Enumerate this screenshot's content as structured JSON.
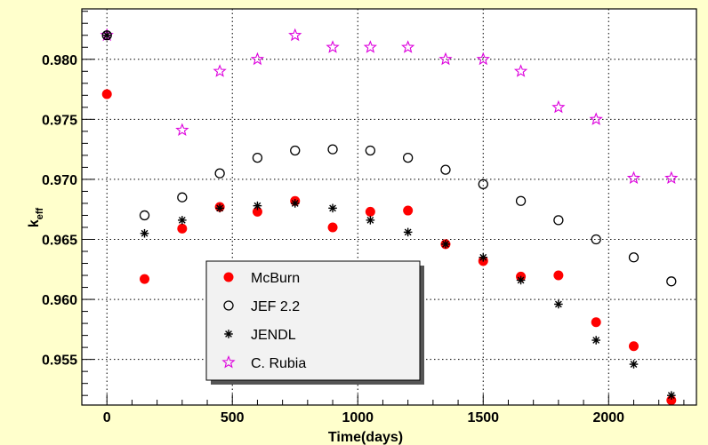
{
  "chart_data": {
    "type": "scatter",
    "title": "",
    "xlabel": "Time(days)",
    "ylabel": "k",
    "ylabel_sub": "eff",
    "xlim": [
      -100,
      2350
    ],
    "ylim": [
      0.9512,
      0.9842
    ],
    "xticks": [
      0,
      500,
      1000,
      1500,
      2000
    ],
    "xtick_labels": [
      "0",
      "500",
      "1000",
      "1500",
      "2000"
    ],
    "yticks": [
      0.955,
      0.96,
      0.965,
      0.97,
      0.975,
      0.98
    ],
    "ytick_labels": [
      "0.955",
      "0.960",
      "0.965",
      "0.970",
      "0.975",
      "0.980"
    ],
    "grid": true,
    "legend_position": "lower-left",
    "series": [
      {
        "name": "McBurn",
        "marker": "filled-circle",
        "color": "#ff0000",
        "x": [
          0,
          150,
          300,
          450,
          600,
          750,
          900,
          1050,
          1200,
          1350,
          1500,
          1650,
          1800,
          1950,
          2100,
          2250
        ],
        "y": [
          0.9771,
          0.9617,
          0.9659,
          0.9677,
          0.9673,
          0.9682,
          0.966,
          0.9673,
          0.9674,
          0.9646,
          0.9632,
          0.9619,
          0.962,
          0.9581,
          0.9561,
          0.9516
        ]
      },
      {
        "name": "JEF 2.2",
        "marker": "open-circle",
        "color": "#000000",
        "x": [
          0,
          150,
          300,
          450,
          600,
          750,
          900,
          1050,
          1200,
          1350,
          1500,
          1650,
          1800,
          1950,
          2100,
          2250
        ],
        "y": [
          0.982,
          0.967,
          0.9685,
          0.9705,
          0.9718,
          0.9724,
          0.9725,
          0.9724,
          0.9718,
          0.9708,
          0.9696,
          0.9682,
          0.9666,
          0.965,
          0.9635,
          0.9615
        ]
      },
      {
        "name": "JENDL",
        "marker": "asterisk",
        "color": "#000000",
        "x": [
          0,
          150,
          300,
          450,
          600,
          750,
          900,
          1050,
          1200,
          1350,
          1500,
          1650,
          1800,
          1950,
          2100,
          2250
        ],
        "y": [
          0.982,
          0.9655,
          0.9666,
          0.9676,
          0.9678,
          0.968,
          0.9676,
          0.9666,
          0.9656,
          0.9646,
          0.9635,
          0.9616,
          0.9596,
          0.9566,
          0.9546,
          0.952
        ]
      },
      {
        "name": "C. Rubia",
        "marker": "open-star",
        "color": "#dd00dd",
        "x": [
          0,
          300,
          450,
          600,
          750,
          900,
          1050,
          1200,
          1350,
          1500,
          1650,
          1800,
          1950,
          2100,
          2250
        ],
        "y": [
          0.982,
          0.9741,
          0.979,
          0.98,
          0.982,
          0.981,
          0.981,
          0.981,
          0.98,
          0.98,
          0.979,
          0.976,
          0.975,
          0.9701,
          0.9701
        ]
      }
    ]
  },
  "colors": {
    "background": "#ffffcc",
    "plot_area": "#ffffff",
    "legend_shadow": "#555555"
  }
}
